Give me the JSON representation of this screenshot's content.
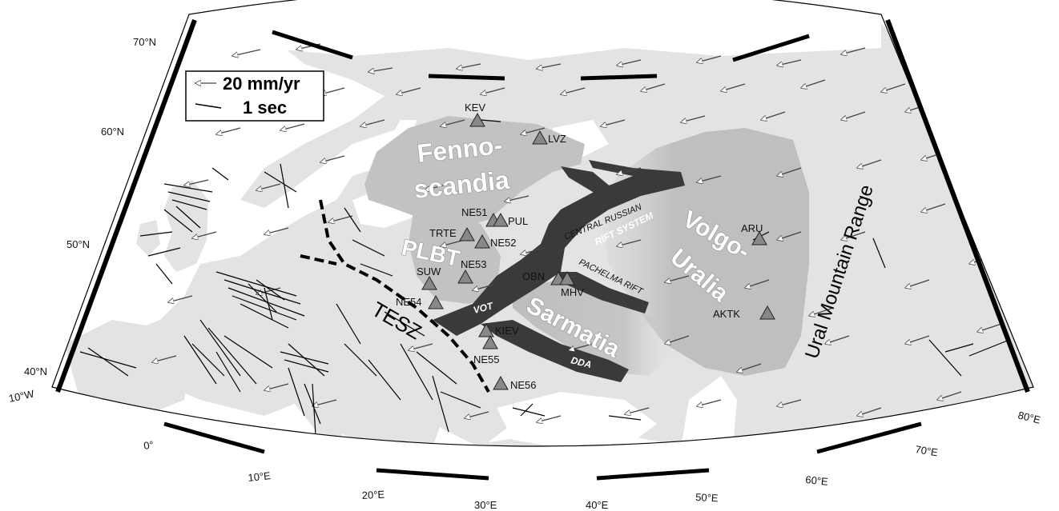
{
  "legend": {
    "velocity_label": "20 mm/yr",
    "delay_label": "1 sec"
  },
  "regions": {
    "fennoscandia_line1": "Fenno-",
    "fennoscandia_line2": "scandia",
    "plbt": "PLBT",
    "sarmatia": "Sarmatia",
    "volgo_line1": "Volgo-",
    "volgo_line2": "Uralia",
    "ural": "Ural Mountain Range",
    "tesz": "TESZ"
  },
  "rifts": {
    "central_line1": "CENTRAL RUSSIAN",
    "central_line2": "RIFT SYSTEM",
    "pachelma": "PACHELMA RIFT",
    "vot": "VOT",
    "dda": "DDA"
  },
  "stations": [
    "KEV",
    "LVZ",
    "NE51",
    "PUL",
    "TRTE",
    "NE52",
    "NE53",
    "SUW",
    "OBN",
    "MHV",
    "NE54",
    "KIEV",
    "NE55",
    "NE56",
    "ARU",
    "AKTK"
  ],
  "lat_labels": [
    "70°N",
    "60°N",
    "50°N",
    "40°N"
  ],
  "lon_labels": [
    "10°W",
    "0°",
    "10°E",
    "20°E",
    "30°E",
    "40°E",
    "50°E",
    "60°E",
    "70°E",
    "80°E"
  ],
  "colors": {
    "land": "#e3e3e3",
    "craton": "#c2c2c2",
    "rift": "#3a3a3a",
    "station": "#888888",
    "frame": "#000000"
  }
}
